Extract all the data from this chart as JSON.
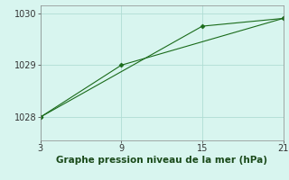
{
  "line1_x": [
    3,
    9,
    21
  ],
  "line1_y": [
    1028.0,
    1029.0,
    1029.9
  ],
  "line2_x": [
    3,
    15,
    21
  ],
  "line2_y": [
    1028.0,
    1029.75,
    1029.9
  ],
  "line_color": "#1a6b1a",
  "marker": "D",
  "marker_size": 2.5,
  "line_width": 0.8,
  "xlim": [
    3,
    21
  ],
  "ylim": [
    1027.55,
    1030.15
  ],
  "xticks": [
    3,
    9,
    15,
    21
  ],
  "yticks": [
    1028,
    1029,
    1030
  ],
  "xlabel": "Graphe pression niveau de la mer (hPa)",
  "xlabel_fontsize": 7.5,
  "tick_fontsize": 7,
  "background_color": "#d8f5ef",
  "grid_color": "#b0ddd4",
  "fig_background": "#d8f5ef",
  "spine_color": "#888888"
}
